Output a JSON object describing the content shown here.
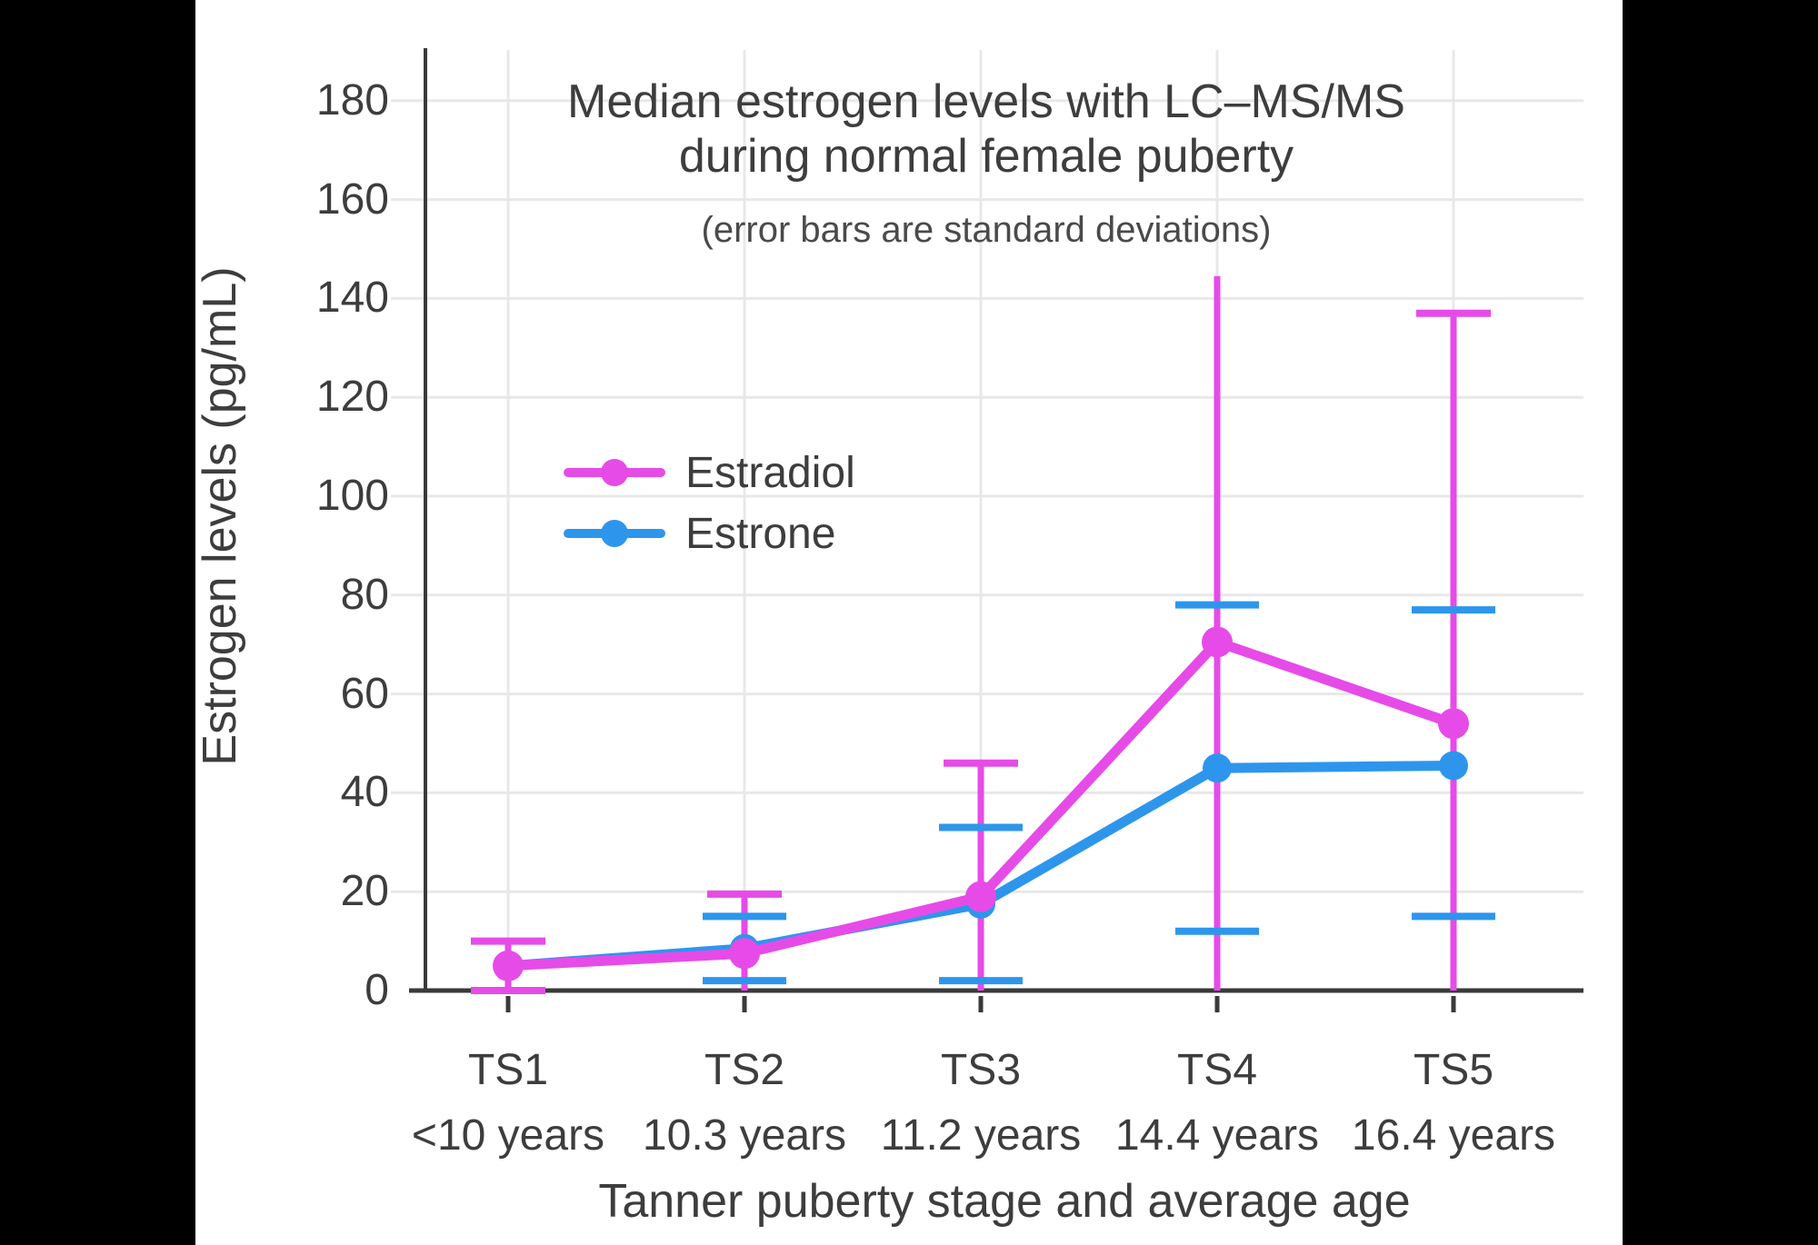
{
  "colors": {
    "background": "#000000",
    "panel": "#ffffff",
    "text": "#3d3d3d",
    "axis": "#3a3a3a",
    "gridline": "#e8e8e8",
    "estradiol": "#e64be8",
    "estrone": "#2d96ec"
  },
  "title": {
    "line1": "Median estrogen levels with LC–MS/MS",
    "line2": "during normal female puberty",
    "subtitle": "(error bars are standard deviations)"
  },
  "y_axis": {
    "label": "Estrogen levels (pg/mL)",
    "tick_values": [
      0,
      20,
      40,
      60,
      80,
      100,
      120,
      140,
      160,
      180
    ],
    "range_min": 0,
    "range_max": 190
  },
  "x_axis": {
    "label": "Tanner puberty stage and average age",
    "stages": [
      "TS1",
      "TS2",
      "TS3",
      "TS4",
      "TS5"
    ],
    "ages": [
      "<10 years",
      "10.3 years",
      "11.2 years",
      "14.4 years",
      "16.4 years"
    ]
  },
  "legend": {
    "items": [
      {
        "label": "Estradiol",
        "color": "#e64be8"
      },
      {
        "label": "Estrone",
        "color": "#2d96ec"
      }
    ]
  },
  "chart_data": {
    "type": "line",
    "title": "Median estrogen levels with LC–MS/MS during normal female puberty",
    "subtitle": "(error bars are standard deviations)",
    "xlabel": "Tanner puberty stage and average age",
    "ylabel": "Estrogen levels (pg/mL)",
    "ylim": [
      0,
      190
    ],
    "grid": true,
    "legend_position": "inside-left-middle",
    "error_bar_meaning": "standard deviation",
    "categories": [
      "TS1",
      "TS2",
      "TS3",
      "TS4",
      "TS5"
    ],
    "category_ages": [
      "<10 years",
      "10.3 years",
      "11.2 years",
      "14.4 years",
      "16.4 years"
    ],
    "series": [
      {
        "name": "Estradiol",
        "color": "#e64be8",
        "values": [
          5,
          7.5,
          19,
          70.5,
          54
        ],
        "sd": [
          5,
          12,
          27,
          74,
          83
        ],
        "error_top": [
          10,
          19.5,
          46,
          144.5,
          137
        ],
        "error_bottom": [
          0,
          0,
          0,
          0,
          0
        ],
        "top_cap": [
          true,
          true,
          true,
          false,
          true
        ],
        "bottom_cap": [
          true,
          false,
          false,
          false,
          false
        ]
      },
      {
        "name": "Estrone",
        "color": "#2d96ec",
        "values": [
          5,
          8.5,
          17.5,
          45,
          45.5
        ],
        "sd": [
          null,
          6.5,
          15.5,
          33,
          31
        ],
        "error_top": [
          null,
          15,
          33,
          78,
          77
        ],
        "error_bottom": [
          null,
          2,
          2,
          12,
          15
        ],
        "top_cap": [
          false,
          true,
          true,
          true,
          true
        ],
        "bottom_cap": [
          false,
          true,
          true,
          true,
          true
        ]
      }
    ]
  }
}
